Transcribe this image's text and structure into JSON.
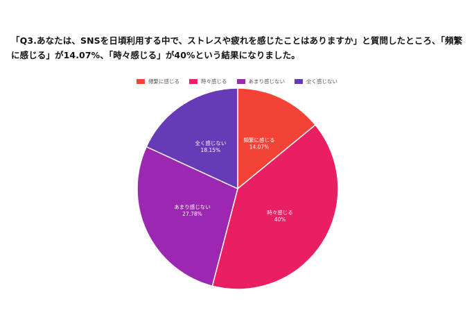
{
  "headline": "「Q3.あなたは、SNSを日頃利用する中で、ストレスや疲れを感じたことはありますか」と質問したところ、「頻繁に感じる」が14.07%、「時々感じる」が40%という結果になりました。",
  "chart_data": {
    "type": "pie",
    "categories": [
      "頻繁に感じる",
      "時々感じる",
      "あまり感じない",
      "全く感じない"
    ],
    "values": [
      14.07,
      40,
      27.78,
      18.15
    ],
    "value_labels": [
      "14.07%",
      "40%",
      "27.78%",
      "18.15%"
    ],
    "colors": [
      "#f44336",
      "#e91e63",
      "#9c27b0",
      "#673ab7"
    ],
    "legend_position": "top",
    "start_angle": "12 o'clock",
    "direction": "clockwise"
  }
}
